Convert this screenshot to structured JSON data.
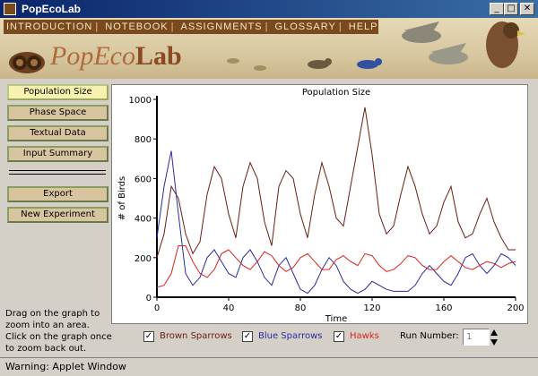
{
  "window": {
    "title": "PopEcoLab"
  },
  "menu": [
    "INTRODUCTION",
    "NOTEBOOK",
    "ASSIGNMENTS",
    "GLOSSARY",
    "HELP"
  ],
  "logo": {
    "prefix": "PopEco",
    "suffix": "Lab"
  },
  "sidebar": {
    "buttons": [
      "Population Size",
      "Phase Space",
      "Textual Data",
      "Input Summary"
    ],
    "actions": [
      "Export",
      "New Experiment"
    ],
    "active": "Population Size"
  },
  "hint": "Drag on the graph to zoom into an area. Click on the graph once to zoom back out.",
  "legend": {
    "items": [
      {
        "label": "Brown Sparrows",
        "color": "#6b1d12",
        "checked": true
      },
      {
        "label": "Blue Sparrows",
        "color": "#2a2aa0",
        "checked": true
      },
      {
        "label": "Hawks",
        "color": "#e02020",
        "checked": true
      }
    ],
    "run_label": "Run Number:",
    "run_value": "1"
  },
  "status": "Warning: Applet Window",
  "chart_data": {
    "type": "line",
    "title": "Population Size",
    "xlabel": "Time",
    "ylabel": "# of Birds",
    "xlim": [
      0,
      200
    ],
    "ylim": [
      0,
      1000
    ],
    "xticks": [
      0,
      40,
      80,
      120,
      160,
      200
    ],
    "yticks": [
      0,
      200,
      400,
      600,
      800,
      1000
    ],
    "series": [
      {
        "name": "Brown Sparrows",
        "color": "#6b1d12",
        "x": [
          0,
          4,
          8,
          12,
          16,
          20,
          24,
          28,
          32,
          36,
          40,
          44,
          48,
          52,
          56,
          60,
          64,
          68,
          72,
          76,
          80,
          84,
          88,
          92,
          96,
          100,
          104,
          108,
          112,
          116,
          120,
          124,
          128,
          132,
          136,
          140,
          144,
          148,
          152,
          156,
          160,
          164,
          168,
          172,
          176,
          180,
          184,
          188,
          192,
          196,
          200
        ],
        "values": [
          200,
          320,
          560,
          500,
          320,
          220,
          280,
          520,
          660,
          600,
          420,
          300,
          560,
          680,
          600,
          380,
          260,
          560,
          640,
          600,
          420,
          300,
          520,
          680,
          560,
          400,
          360,
          560,
          760,
          960,
          720,
          420,
          320,
          360,
          520,
          660,
          560,
          420,
          320,
          360,
          480,
          560,
          380,
          300,
          320,
          420,
          500,
          380,
          300,
          240,
          240
        ]
      },
      {
        "name": "Blue Sparrows",
        "color": "#2a2aa0",
        "x": [
          0,
          4,
          8,
          12,
          16,
          20,
          24,
          28,
          32,
          36,
          40,
          44,
          48,
          52,
          56,
          60,
          64,
          68,
          72,
          76,
          80,
          84,
          88,
          92,
          96,
          100,
          104,
          108,
          112,
          116,
          120,
          124,
          128,
          132,
          136,
          140,
          144,
          148,
          152,
          156,
          160,
          164,
          168,
          172,
          176,
          180,
          184,
          188,
          192,
          196,
          200
        ],
        "values": [
          300,
          560,
          740,
          420,
          120,
          60,
          100,
          200,
          240,
          180,
          120,
          100,
          200,
          240,
          180,
          100,
          60,
          160,
          200,
          120,
          40,
          20,
          60,
          140,
          200,
          160,
          80,
          40,
          20,
          40,
          80,
          60,
          40,
          30,
          30,
          30,
          60,
          120,
          160,
          120,
          80,
          60,
          120,
          200,
          220,
          160,
          120,
          160,
          220,
          200,
          160
        ]
      },
      {
        "name": "Hawks",
        "color": "#e02020",
        "x": [
          0,
          4,
          8,
          12,
          16,
          20,
          24,
          28,
          32,
          36,
          40,
          44,
          48,
          52,
          56,
          60,
          64,
          68,
          72,
          76,
          80,
          84,
          88,
          92,
          96,
          100,
          104,
          108,
          112,
          116,
          120,
          124,
          128,
          132,
          136,
          140,
          144,
          148,
          152,
          156,
          160,
          164,
          168,
          172,
          176,
          180,
          184,
          188,
          192,
          196,
          200
        ],
        "values": [
          50,
          60,
          120,
          260,
          260,
          180,
          120,
          100,
          140,
          220,
          240,
          200,
          160,
          140,
          180,
          230,
          210,
          160,
          130,
          150,
          200,
          220,
          180,
          140,
          140,
          190,
          210,
          180,
          160,
          220,
          210,
          160,
          130,
          140,
          170,
          210,
          200,
          160,
          140,
          140,
          180,
          210,
          180,
          150,
          140,
          160,
          180,
          170,
          150,
          170,
          180
        ]
      }
    ]
  }
}
